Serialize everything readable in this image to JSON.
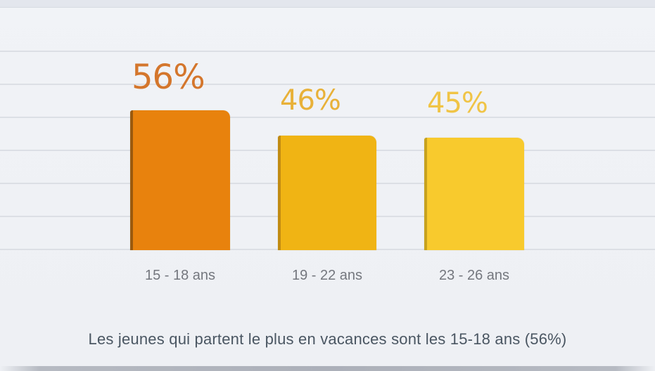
{
  "chart_data": {
    "type": "bar",
    "title": "",
    "categories": [
      "15 - 18 ans",
      "19 - 22 ans",
      "23 - 26 ans"
    ],
    "values": [
      56,
      46,
      45
    ],
    "value_labels": [
      "56%",
      "46%",
      "45%"
    ],
    "unit": "%",
    "bar_colors": [
      "#e8820d",
      "#f0b414",
      "#f8ca2d"
    ],
    "bar_edge_colors": [
      "#9a5a0e",
      "#c18b12",
      "#c7a21e"
    ],
    "value_label_colors": [
      "#d4762c",
      "#e8b139",
      "#f0c446"
    ],
    "category_label_color": "#74777e",
    "gridline_color": "#dcdfe5",
    "background_color": "#eff1f5",
    "grid": true,
    "legend": false,
    "yaxis_tick_labels_visible": false,
    "ylim": [
      0,
      80
    ]
  },
  "caption": {
    "text": "Les jeunes qui partent le plus en vacances sont les 15-18 ans (56%)",
    "color": "#4a5662"
  }
}
